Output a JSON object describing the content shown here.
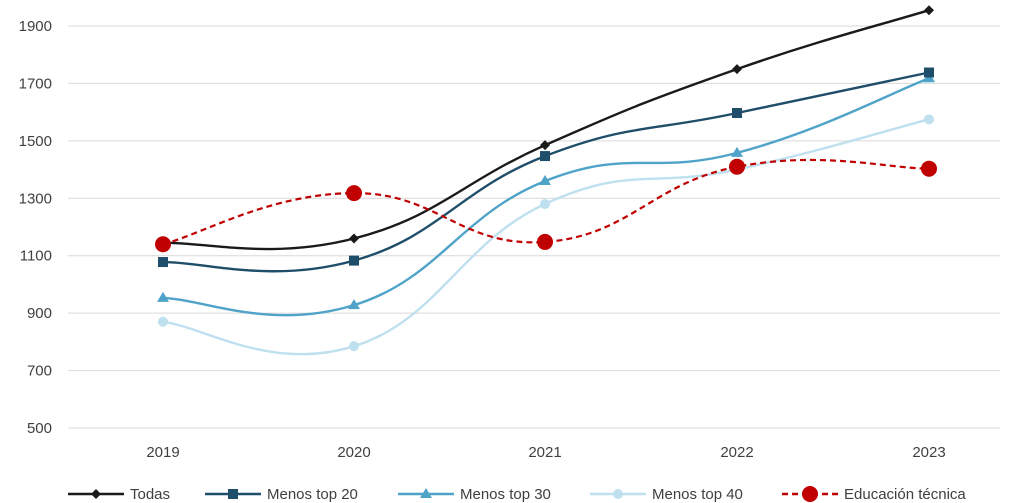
{
  "chart_data": {
    "type": "line",
    "categories": [
      "2019",
      "2020",
      "2021",
      "2022",
      "2023"
    ],
    "ylim": [
      500,
      1900
    ],
    "yticks": [
      500,
      700,
      900,
      1100,
      1300,
      1500,
      1700,
      1900
    ],
    "grid": true,
    "legend_position": "bottom",
    "series": [
      {
        "name": "Todas",
        "values": [
          1145,
          1160,
          1485,
          1750,
          1955
        ],
        "color": "#1a1a1a",
        "marker": "diamond",
        "dash": "solid"
      },
      {
        "name": "Menos top 20",
        "values": [
          1078,
          1083,
          1447,
          1597,
          1738
        ],
        "color": "#1f4e6a",
        "marker": "square",
        "dash": "solid"
      },
      {
        "name": "Menos top 30",
        "values": [
          953,
          928,
          1360,
          1458,
          1718
        ],
        "color": "#4fa3c8",
        "marker": "triangle",
        "dash": "solid"
      },
      {
        "name": "Menos top 40",
        "values": [
          870,
          785,
          1280,
          1400,
          1575
        ],
        "color": "#bfe0ee",
        "marker": "circle",
        "dash": "solid"
      },
      {
        "name": "Educación técnica",
        "values": [
          1140,
          1318,
          1148,
          1410,
          1403
        ],
        "color": "#c00000",
        "marker": "bigcircle",
        "dash": "dashed"
      }
    ]
  }
}
